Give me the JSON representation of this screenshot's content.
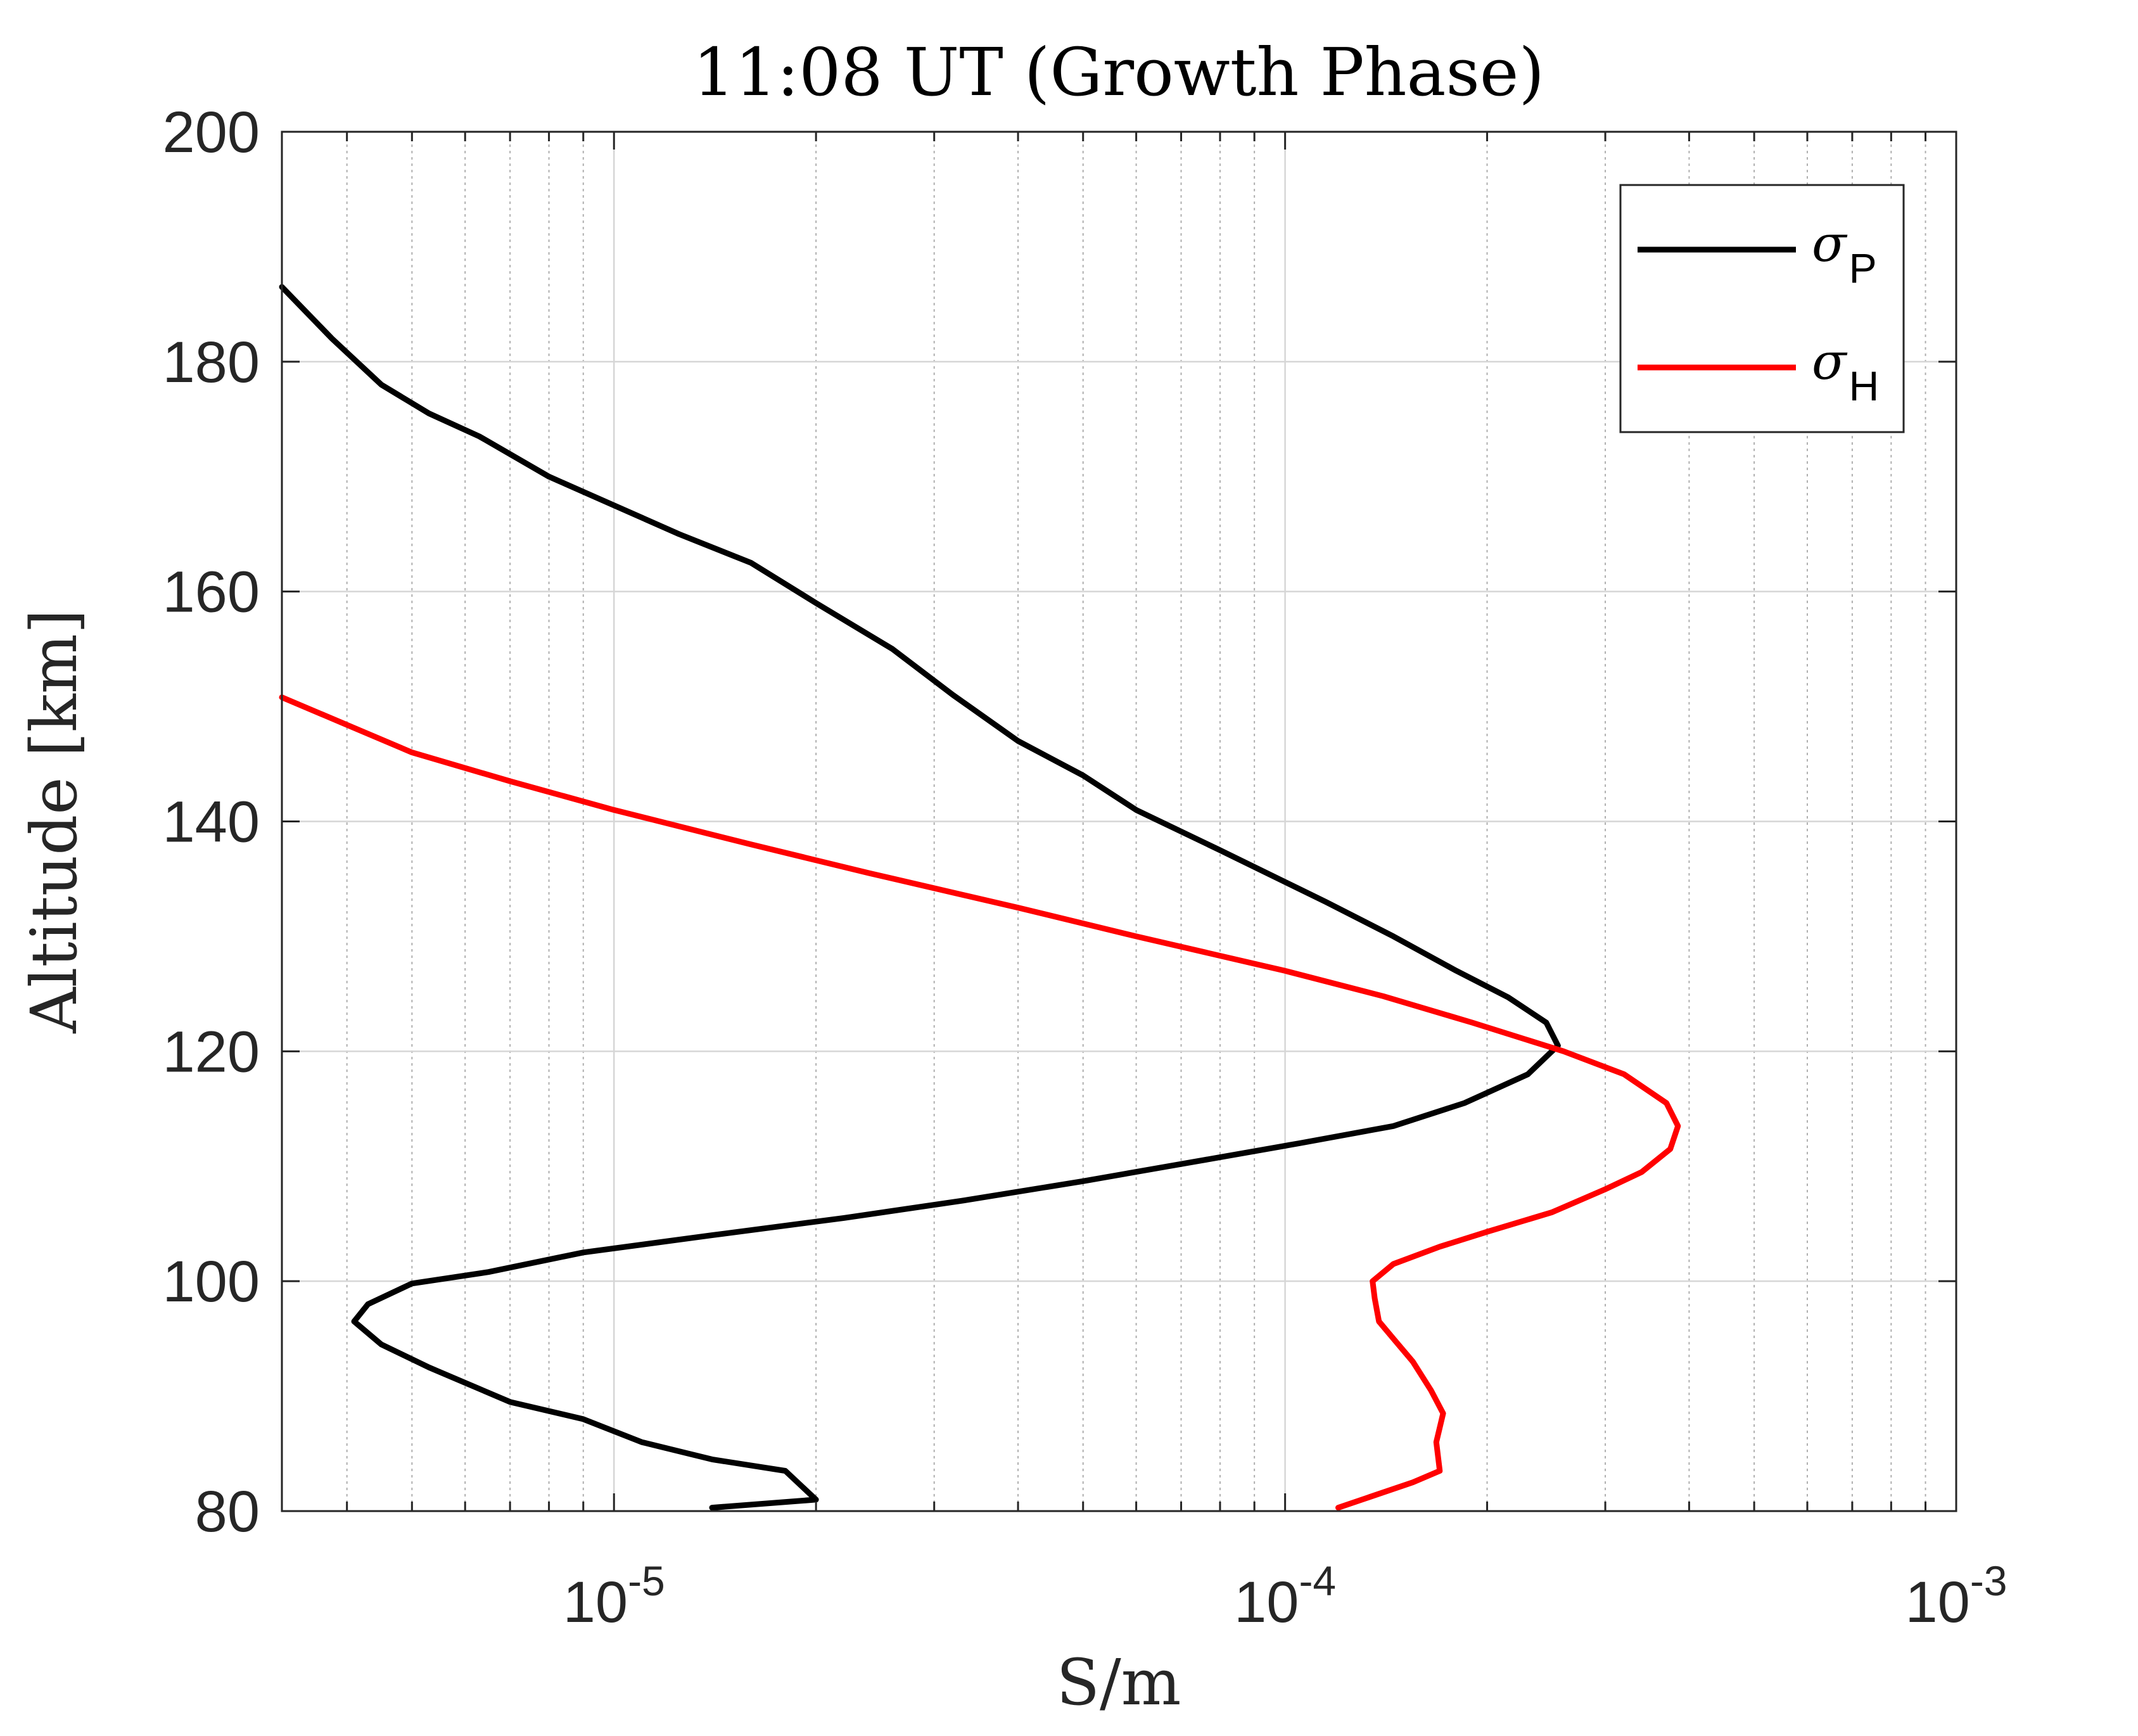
{
  "chart_data": {
    "type": "line",
    "title": "11:08 UT (Growth Phase)",
    "xlabel": "S/m",
    "ylabel": "Altitude [km]",
    "x_scale": "log",
    "xlim": [
      3.2e-06,
      0.001
    ],
    "ylim": [
      80,
      200
    ],
    "x_ticks": [
      {
        "value": 1e-05,
        "base": "10",
        "exp": "-5"
      },
      {
        "value": 0.0001,
        "base": "10",
        "exp": "-4"
      },
      {
        "value": 0.001,
        "base": "10",
        "exp": "-3"
      }
    ],
    "y_ticks": [
      80,
      100,
      120,
      140,
      160,
      180,
      200
    ],
    "grid": true,
    "legend_position": "top-right",
    "series": [
      {
        "name": "σ",
        "subscript": "P",
        "color": "#000000",
        "points": [
          [
            1.4e-05,
            80.3
          ],
          [
            2e-05,
            81.0
          ],
          [
            1.8e-05,
            83.5
          ],
          [
            1.4e-05,
            84.5
          ],
          [
            1.1e-05,
            86.0
          ],
          [
            9e-06,
            88.0
          ],
          [
            7e-06,
            89.5
          ],
          [
            5.3e-06,
            92.5
          ],
          [
            4.5e-06,
            94.5
          ],
          [
            4.1e-06,
            96.5
          ],
          [
            4.3e-06,
            98.0
          ],
          [
            5e-06,
            99.8
          ],
          [
            6.5e-06,
            100.8
          ],
          [
            9e-06,
            102.5
          ],
          [
            1.4e-05,
            104.0
          ],
          [
            2.2e-05,
            105.5
          ],
          [
            3.3e-05,
            107.0
          ],
          [
            5e-05,
            108.7
          ],
          [
            7.5e-05,
            110.5
          ],
          [
            0.000105,
            112.0
          ],
          [
            0.000145,
            113.5
          ],
          [
            0.000185,
            115.5
          ],
          [
            0.00023,
            118.0
          ],
          [
            0.000255,
            120.5
          ],
          [
            0.000245,
            122.5
          ],
          [
            0.000215,
            124.7
          ],
          [
            0.00018,
            127.0
          ],
          [
            0.000145,
            130.0
          ],
          [
            0.000115,
            133.0
          ],
          [
            8e-05,
            137.5
          ],
          [
            6e-05,
            141.0
          ],
          [
            5e-05,
            144.0
          ],
          [
            4e-05,
            147.0
          ],
          [
            3.2e-05,
            151.0
          ],
          [
            2.6e-05,
            155.0
          ],
          [
            2e-05,
            159.0
          ],
          [
            1.6e-05,
            162.5
          ],
          [
            1.25e-05,
            165.0
          ],
          [
            1e-05,
            167.5
          ],
          [
            8e-06,
            170.0
          ],
          [
            6.3e-06,
            173.5
          ],
          [
            5.3e-06,
            175.5
          ],
          [
            4.5e-06,
            178.0
          ],
          [
            3.8e-06,
            182.0
          ],
          [
            3.2e-06,
            186.5
          ]
        ]
      },
      {
        "name": "σ",
        "subscript": "H",
        "color": "#ff0000",
        "points": [
          [
            0.00012,
            80.3
          ],
          [
            0.000155,
            82.5
          ],
          [
            0.00017,
            83.5
          ],
          [
            0.000168,
            86.0
          ],
          [
            0.000172,
            88.5
          ],
          [
            0.000165,
            90.5
          ],
          [
            0.000155,
            93.0
          ],
          [
            0.000145,
            95.0
          ],
          [
            0.000138,
            96.5
          ],
          [
            0.000136,
            98.5
          ],
          [
            0.000135,
            100.0
          ],
          [
            0.000145,
            101.5
          ],
          [
            0.00017,
            103.0
          ],
          [
            0.0002,
            104.3
          ],
          [
            0.00025,
            106.0
          ],
          [
            0.0003,
            108.0
          ],
          [
            0.00034,
            109.5
          ],
          [
            0.000375,
            111.5
          ],
          [
            0.000385,
            113.5
          ],
          [
            0.00037,
            115.5
          ],
          [
            0.00032,
            118.0
          ],
          [
            0.00026,
            120.0
          ],
          [
            0.00019,
            122.5
          ],
          [
            0.00014,
            124.8
          ],
          [
            0.0001,
            127.0
          ],
          [
            6e-05,
            130.0
          ],
          [
            4e-05,
            132.5
          ],
          [
            2.4e-05,
            135.5
          ],
          [
            1.6e-05,
            138.0
          ],
          [
            1e-05,
            141.0
          ],
          [
            7e-06,
            143.5
          ],
          [
            5e-06,
            146.0
          ],
          [
            3.2e-06,
            150.8
          ]
        ]
      }
    ]
  }
}
